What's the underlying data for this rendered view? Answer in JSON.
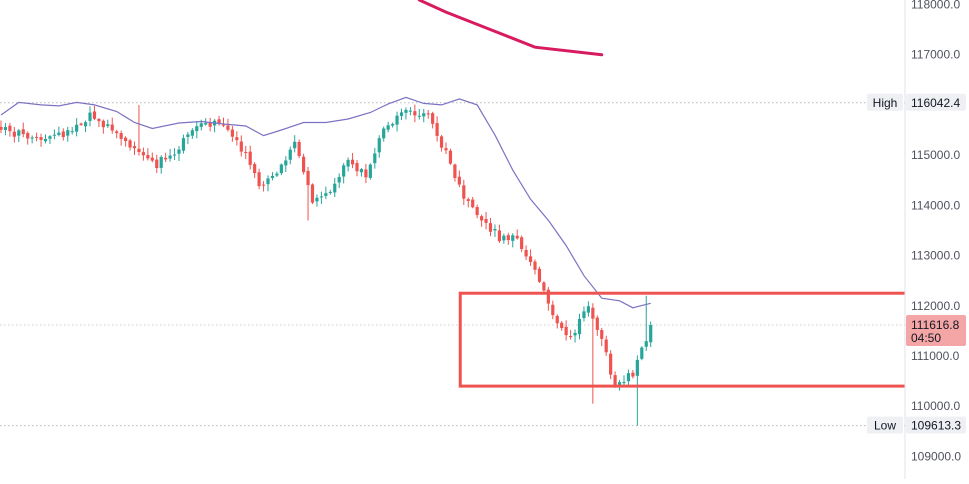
{
  "chart_data": {
    "type": "candlestick",
    "y_axis": {
      "ticks": [
        118000,
        117000,
        116000,
        115000,
        114000,
        113000,
        112000,
        111000,
        110000,
        109000
      ],
      "tick_labels": [
        "118000.0",
        "117000.0",
        "116000.0",
        "115000.0",
        "114000.0",
        "113000.0",
        "112000.0",
        "111000.0",
        "110000.0",
        "109000.0"
      ],
      "ylim": [
        108550,
        118090
      ]
    },
    "high": {
      "label": "High",
      "value_text": "116042.4",
      "value": 116042.4
    },
    "low": {
      "label": "Low",
      "value_text": "109613.3",
      "value": 109613.3
    },
    "last_price": {
      "value_text": "111616.8",
      "value": 111616.8,
      "countdown": "04:50",
      "color": "#f4a6a6"
    },
    "candles": {
      "count": 147,
      "seed": 20240607,
      "close_path": [
        [
          0,
          115500
        ],
        [
          8,
          115350
        ],
        [
          15,
          115450
        ],
        [
          20,
          115800
        ],
        [
          24,
          115550
        ],
        [
          30,
          115100
        ],
        [
          35,
          114820
        ],
        [
          40,
          115150
        ],
        [
          45,
          115700
        ],
        [
          50,
          115550
        ],
        [
          55,
          115000
        ],
        [
          58,
          114350
        ],
        [
          62,
          114700
        ],
        [
          66,
          115200
        ],
        [
          70,
          114100
        ],
        [
          74,
          114300
        ],
        [
          78,
          114900
        ],
        [
          82,
          114600
        ],
        [
          86,
          115550
        ],
        [
          90,
          115850
        ],
        [
          96,
          115750
        ],
        [
          100,
          115050
        ],
        [
          104,
          114150
        ],
        [
          108,
          113750
        ],
        [
          112,
          113350
        ],
        [
          116,
          113350
        ],
        [
          120,
          112700
        ],
        [
          124,
          111750
        ],
        [
          128,
          111400
        ],
        [
          132,
          111950
        ],
        [
          135,
          111300
        ],
        [
          138,
          110400
        ],
        [
          142,
          110650
        ],
        [
          146,
          111616.8
        ]
      ],
      "bull_color": "#26a69a",
      "bear_color": "#ef5350"
    },
    "envelope_line": {
      "color": "#7b73c2",
      "points": [
        [
          0,
          115800
        ],
        [
          4,
          116050
        ],
        [
          9,
          116000
        ],
        [
          13,
          115980
        ],
        [
          17,
          116050
        ],
        [
          21,
          116000
        ],
        [
          26,
          115870
        ],
        [
          30,
          115650
        ],
        [
          34,
          115530
        ],
        [
          40,
          115640
        ],
        [
          45,
          115670
        ],
        [
          50,
          115620
        ],
        [
          55,
          115580
        ],
        [
          59,
          115390
        ],
        [
          63,
          115500
        ],
        [
          68,
          115650
        ],
        [
          73,
          115650
        ],
        [
          78,
          115720
        ],
        [
          83,
          115850
        ],
        [
          87,
          116020
        ],
        [
          91,
          116150
        ],
        [
          95,
          116030
        ],
        [
          99,
          116000
        ],
        [
          103,
          116120
        ],
        [
          107,
          116000
        ],
        [
          111,
          115400
        ],
        [
          115,
          114700
        ],
        [
          119,
          114120
        ],
        [
          123,
          113700
        ],
        [
          127,
          113200
        ],
        [
          131,
          112600
        ],
        [
          135,
          112150
        ],
        [
          139,
          112100
        ],
        [
          142,
          111960
        ],
        [
          146,
          112050
        ]
      ]
    },
    "moving_average": {
      "color": "#d81b60",
      "points": [
        [
          94,
          118090
        ],
        [
          100,
          117850
        ],
        [
          110,
          117500
        ],
        [
          120,
          117150
        ],
        [
          135,
          117000
        ]
      ]
    },
    "zone_box": {
      "y_top": 112250,
      "y_bottom": 110400,
      "x_start": 103.2,
      "color": "#ef5350"
    }
  }
}
